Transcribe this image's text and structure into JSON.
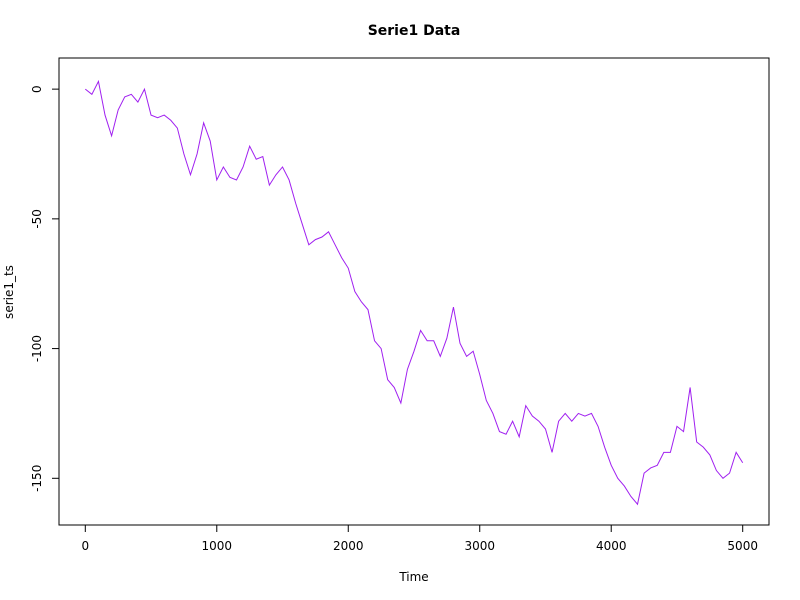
{
  "chart_data": {
    "type": "line",
    "title": "Serie1 Data",
    "x_label": "Time",
    "y_label": "serie1_ts",
    "x": [
      0,
      50,
      100,
      150,
      200,
      250,
      300,
      350,
      400,
      450,
      500,
      550,
      600,
      650,
      700,
      750,
      800,
      850,
      900,
      950,
      1000,
      1050,
      1100,
      1150,
      1200,
      1250,
      1300,
      1350,
      1400,
      1450,
      1500,
      1550,
      1600,
      1650,
      1700,
      1750,
      1800,
      1850,
      1900,
      1950,
      2000,
      2050,
      2100,
      2150,
      2200,
      2250,
      2300,
      2350,
      2400,
      2450,
      2500,
      2550,
      2600,
      2650,
      2700,
      2750,
      2800,
      2850,
      2900,
      2950,
      3000,
      3050,
      3100,
      3150,
      3200,
      3250,
      3300,
      3350,
      3400,
      3450,
      3500,
      3550,
      3600,
      3650,
      3700,
      3750,
      3800,
      3850,
      3900,
      3950,
      4000,
      4050,
      4100,
      4150,
      4200,
      4250,
      4300,
      4350,
      4400,
      4450,
      4500,
      4550,
      4600,
      4650,
      4700,
      4750,
      4800,
      4850,
      4900,
      4950,
      5000
    ],
    "series": [
      {
        "name": "serie1_ts",
        "color": "#a020f0",
        "values": [
          0,
          -2,
          3,
          -10,
          -18,
          -8,
          -3,
          -2,
          -5,
          0,
          -10,
          -11,
          -10,
          -12,
          -15,
          -25,
          -33,
          -25,
          -13,
          -20,
          -35,
          -30,
          -34,
          -35,
          -30,
          -22,
          -27,
          -26,
          -37,
          -33,
          -30,
          -35,
          -44,
          -52,
          -60,
          -58,
          -57,
          -55,
          -60,
          -65,
          -69,
          -78,
          -82,
          -85,
          -97,
          -100,
          -112,
          -115,
          -121,
          -108,
          -101,
          -93,
          -97,
          -97,
          -103,
          -96,
          -84,
          -98,
          -103,
          -101,
          -110,
          -120,
          -125,
          -132,
          -133,
          -128,
          -134,
          -122,
          -126,
          -128,
          -131,
          -140,
          -128,
          -125,
          -128,
          -125,
          -126,
          -125,
          -130,
          -138,
          -145,
          -150,
          -153,
          -157,
          -160,
          -148,
          -146,
          -145,
          -140,
          -140,
          -130,
          -132,
          -115,
          -136,
          -138,
          -141,
          -147,
          -150,
          -148,
          -140,
          -144
        ]
      }
    ],
    "xlim": [
      -200,
      5200
    ],
    "ylim": [
      -168,
      12
    ],
    "xticks": [
      0,
      1000,
      2000,
      3000,
      4000,
      5000
    ],
    "yticks": [
      -150,
      -100,
      -50,
      0
    ],
    "grid": false
  }
}
